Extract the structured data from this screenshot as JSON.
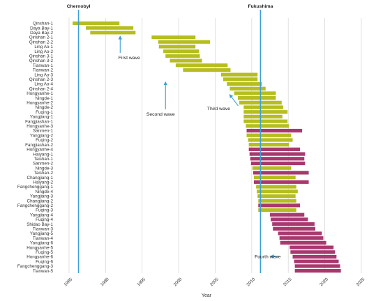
{
  "chart_data": {
    "type": "bar",
    "subtype": "timeline-range",
    "xlabel": "Year",
    "xlim": [
      1983,
      2025
    ],
    "xticks": [
      1985,
      1990,
      1995,
      2000,
      2005,
      2010,
      2015,
      2020,
      2025
    ],
    "grid": true,
    "status_colors": {
      "operating": "#b5be1e",
      "under_construction": "#a9386f"
    },
    "reference_line_color": "#3b9fd8",
    "events": [
      {
        "label": "Chernobyl",
        "year": 1986.3
      },
      {
        "label": "Fukushima",
        "year": 2011.2
      }
    ],
    "annotations": [
      {
        "text": "First wave",
        "target_year": 1992.0,
        "target_row": 2.8
      },
      {
        "text": "Second wave",
        "target_year": 1998.2,
        "target_row": 12.6
      },
      {
        "text": "Third wave",
        "target_year": 2007.0,
        "target_row": 15.3
      },
      {
        "text": "Fourth wave",
        "target_year": 2012.6,
        "target_row": 49.9
      }
    ],
    "reactors": [
      {
        "name": "Qinshan-1",
        "start": 1985.5,
        "end": 1991.9,
        "status": "operating"
      },
      {
        "name": "Daya Bay-1",
        "start": 1987.3,
        "end": 1993.8,
        "status": "operating"
      },
      {
        "name": "Daya Bay-2",
        "start": 1987.9,
        "end": 1994.1,
        "status": "operating"
      },
      {
        "name": "Qinshan 2-1",
        "start": 1996.3,
        "end": 2002.3,
        "status": "operating"
      },
      {
        "name": "Qinshan 2-2",
        "start": 1997.2,
        "end": 2004.3,
        "status": "operating"
      },
      {
        "name": "Ling Ao-1",
        "start": 1997.3,
        "end": 2002.3,
        "status": "operating"
      },
      {
        "name": "Ling Ao-2",
        "start": 1997.9,
        "end": 2002.8,
        "status": "operating"
      },
      {
        "name": "Qinshan 3-1",
        "start": 1998.2,
        "end": 2002.9,
        "status": "operating"
      },
      {
        "name": "Qinshan 3-2",
        "start": 1998.8,
        "end": 2003.2,
        "status": "operating"
      },
      {
        "name": "Tianwan-1",
        "start": 1999.6,
        "end": 2006.7,
        "status": "operating"
      },
      {
        "name": "Tianwan-2",
        "start": 2000.6,
        "end": 2007.1,
        "status": "operating"
      },
      {
        "name": "Ling Ao-3",
        "start": 2005.8,
        "end": 2010.8,
        "status": "operating"
      },
      {
        "name": "Qinshan 2-3",
        "start": 2006.1,
        "end": 2010.8,
        "status": "operating"
      },
      {
        "name": "Ling Ao-4",
        "start": 2006.6,
        "end": 2011.4,
        "status": "operating"
      },
      {
        "name": "Qinshan 2-4",
        "start": 2007.0,
        "end": 2011.9,
        "status": "operating"
      },
      {
        "name": "Hongyanhe-1",
        "start": 2007.6,
        "end": 2013.3,
        "status": "operating"
      },
      {
        "name": "Ningde-1",
        "start": 2008.1,
        "end": 2013.3,
        "status": "operating"
      },
      {
        "name": "Hongyanhe-2",
        "start": 2008.3,
        "end": 2014.1,
        "status": "operating"
      },
      {
        "name": "Ningde-2",
        "start": 2008.9,
        "end": 2014.3,
        "status": "operating"
      },
      {
        "name": "Fuqing-1",
        "start": 2008.9,
        "end": 2014.9,
        "status": "operating"
      },
      {
        "name": "Yangjiang-1",
        "start": 2008.9,
        "end": 2014.2,
        "status": "operating"
      },
      {
        "name": "Fangjiashan-1",
        "start": 2008.9,
        "end": 2014.9,
        "status": "operating"
      },
      {
        "name": "Hongyanhe-3",
        "start": 2009.2,
        "end": 2015.1,
        "status": "operating"
      },
      {
        "name": "Sanmen-1",
        "start": 2009.3,
        "end": 2016.9,
        "status": "under_construction"
      },
      {
        "name": "Yangjiang-2",
        "start": 2009.3,
        "end": 2015.4,
        "status": "operating"
      },
      {
        "name": "Fuqing-2",
        "start": 2009.5,
        "end": 2015.6,
        "status": "operating"
      },
      {
        "name": "Fangjiashan-2",
        "start": 2009.6,
        "end": 2015.1,
        "status": "operating"
      },
      {
        "name": "Hongyanhe-4",
        "start": 2009.6,
        "end": 2016.6,
        "status": "under_construction"
      },
      {
        "name": "Haiyang-1",
        "start": 2009.7,
        "end": 2017.3,
        "status": "under_construction"
      },
      {
        "name": "Taishan-1",
        "start": 2009.8,
        "end": 2017.2,
        "status": "under_construction"
      },
      {
        "name": "Sanmen-2",
        "start": 2009.9,
        "end": 2017.3,
        "status": "under_construction"
      },
      {
        "name": "Ningde-3",
        "start": 2010.1,
        "end": 2015.4,
        "status": "operating"
      },
      {
        "name": "Taishan-2",
        "start": 2010.2,
        "end": 2017.8,
        "status": "under_construction"
      },
      {
        "name": "Changjiang-1",
        "start": 2010.3,
        "end": 2016.0,
        "status": "operating"
      },
      {
        "name": "Haiyang-2",
        "start": 2010.3,
        "end": 2017.8,
        "status": "under_construction"
      },
      {
        "name": "Fangchenggang-1",
        "start": 2010.6,
        "end": 2016.1,
        "status": "operating"
      },
      {
        "name": "Ningde-4",
        "start": 2010.7,
        "end": 2016.3,
        "status": "operating"
      },
      {
        "name": "Yangjiang-3",
        "start": 2010.8,
        "end": 2016.0,
        "status": "operating"
      },
      {
        "name": "Changjiang-2",
        "start": 2010.9,
        "end": 2016.1,
        "status": "operating"
      },
      {
        "name": "Fangchenggang-2",
        "start": 2010.9,
        "end": 2016.6,
        "status": "under_construction"
      },
      {
        "name": "Fuqing-3",
        "start": 2010.9,
        "end": 2016.1,
        "status": "operating"
      },
      {
        "name": "Yangjiang-4",
        "start": 2012.5,
        "end": 2017.2,
        "status": "under_construction"
      },
      {
        "name": "Fuqing-4",
        "start": 2012.6,
        "end": 2017.7,
        "status": "under_construction"
      },
      {
        "name": "Shidao Bay-1",
        "start": 2012.8,
        "end": 2018.6,
        "status": "under_construction"
      },
      {
        "name": "Tianwan-3",
        "start": 2012.9,
        "end": 2018.7,
        "status": "under_construction"
      },
      {
        "name": "Yangjiang-5",
        "start": 2013.6,
        "end": 2019.6,
        "status": "under_construction"
      },
      {
        "name": "Tianwan-4",
        "start": 2013.8,
        "end": 2019.8,
        "status": "under_construction"
      },
      {
        "name": "Yangjiang-6",
        "start": 2013.9,
        "end": 2020.2,
        "status": "under_construction"
      },
      {
        "name": "Hongyanhe-5",
        "start": 2015.2,
        "end": 2021.2,
        "status": "under_construction"
      },
      {
        "name": "Fuqing-5",
        "start": 2015.3,
        "end": 2021.4,
        "status": "under_construction"
      },
      {
        "name": "Hongyanhe-6",
        "start": 2015.6,
        "end": 2021.6,
        "status": "under_construction"
      },
      {
        "name": "Fuqing-6",
        "start": 2015.8,
        "end": 2021.9,
        "status": "under_construction"
      },
      {
        "name": "Fangchenggang-3",
        "start": 2015.9,
        "end": 2022.1,
        "status": "under_construction"
      },
      {
        "name": "Tianwan-5",
        "start": 2015.9,
        "end": 2022.2,
        "status": "under_construction"
      }
    ]
  }
}
